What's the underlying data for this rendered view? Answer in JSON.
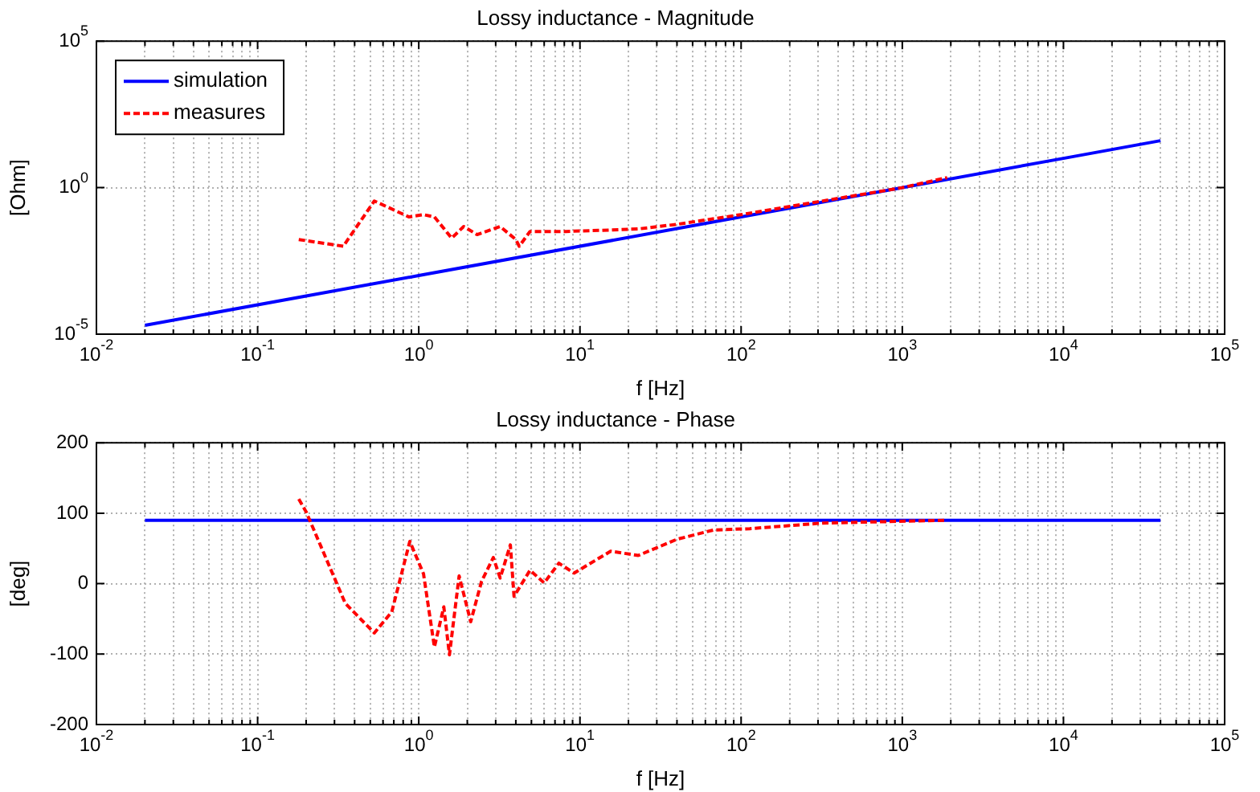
{
  "chart_data": [
    {
      "type": "line",
      "title": "Lossy inductance - Magnitude",
      "xlabel": "f [Hz]",
      "ylabel": "[Ohm]",
      "log": "xy",
      "grid": true,
      "legend": "top left",
      "xlim": [
        0.01,
        100000
      ],
      "ylim": [
        1e-05,
        100000
      ],
      "xticks": [
        {
          "value": 0.01,
          "label": "10$^{-2}$"
        },
        {
          "value": 0.02,
          "label": null
        },
        {
          "value": 0.03,
          "label": null
        },
        {
          "value": 0.04,
          "label": null
        },
        {
          "value": 0.05,
          "label": null
        },
        {
          "value": 0.06,
          "label": null
        },
        {
          "value": 0.07,
          "label": null
        },
        {
          "value": 0.08,
          "label": null
        },
        {
          "value": 0.09,
          "label": null
        },
        {
          "value": 0.1,
          "label": "10$^{-1}$"
        },
        {
          "value": 0.2,
          "label": null
        },
        {
          "value": 0.3,
          "label": null
        },
        {
          "value": 0.4,
          "label": null
        },
        {
          "value": 0.5,
          "label": null
        },
        {
          "value": 0.6,
          "label": null
        },
        {
          "value": 0.7,
          "label": null
        },
        {
          "value": 0.8,
          "label": null
        },
        {
          "value": 0.9,
          "label": null
        },
        {
          "value": 1,
          "label": "10$^{0}$"
        },
        {
          "value": 2,
          "label": null
        },
        {
          "value": 3,
          "label": null
        },
        {
          "value": 4,
          "label": null
        },
        {
          "value": 5,
          "label": null
        },
        {
          "value": 6,
          "label": null
        },
        {
          "value": 7,
          "label": null
        },
        {
          "value": 8,
          "label": null
        },
        {
          "value": 9,
          "label": null
        },
        {
          "value": 10,
          "label": "10$^{1}$"
        },
        {
          "value": 20,
          "label": null
        },
        {
          "value": 30,
          "label": null
        },
        {
          "value": 40,
          "label": null
        },
        {
          "value": 50,
          "label": null
        },
        {
          "value": 60,
          "label": null
        },
        {
          "value": 70,
          "label": null
        },
        {
          "value": 80,
          "label": null
        },
        {
          "value": 90,
          "label": null
        },
        {
          "value": 100,
          "label": "10$^{2}$"
        },
        {
          "value": 200,
          "label": null
        },
        {
          "value": 300,
          "label": null
        },
        {
          "value": 400,
          "label": null
        },
        {
          "value": 500,
          "label": null
        },
        {
          "value": 600,
          "label": null
        },
        {
          "value": 700,
          "label": null
        },
        {
          "value": 800,
          "label": null
        },
        {
          "value": 900,
          "label": null
        },
        {
          "value": 1000,
          "label": "10$^{3}$"
        },
        {
          "value": 2000,
          "label": null
        },
        {
          "value": 3000,
          "label": null
        },
        {
          "value": 4000,
          "label": null
        },
        {
          "value": 5000,
          "label": null
        },
        {
          "value": 6000,
          "label": null
        },
        {
          "value": 7000,
          "label": null
        },
        {
          "value": 8000,
          "label": null
        },
        {
          "value": 9000,
          "label": null
        },
        {
          "value": 10000,
          "label": "10$^{4}$"
        },
        {
          "value": 20000,
          "label": null
        },
        {
          "value": 30000,
          "label": null
        },
        {
          "value": 40000,
          "label": null
        },
        {
          "value": 50000,
          "label": null
        },
        {
          "value": 60000,
          "label": null
        },
        {
          "value": 70000,
          "label": null
        },
        {
          "value": 80000,
          "label": null
        },
        {
          "value": 90000,
          "label": null
        },
        {
          "value": 100000,
          "label": "10$^{5}$"
        }
      ],
      "yticks": [
        {
          "value": 1e-05,
          "label": "10$^{-5}$"
        },
        {
          "value": 1,
          "label": "10$^{0}$"
        },
        {
          "value": 100000,
          "label": "10$^{5}$"
        }
      ],
      "series": [
        {
          "name": "simulation",
          "color": "#0000ff",
          "line_style": "solid",
          "x": [
            0.02,
            1,
            100,
            10000,
            40000
          ],
          "values": [
            2e-05,
            0.001,
            0.1,
            10,
            40
          ]
        },
        {
          "name": "measures",
          "color": "#ff0000",
          "line_style": "dashed",
          "x": [
            0.18,
            0.34,
            0.53,
            0.87,
            1.07,
            1.25,
            1.6,
            1.9,
            2.3,
            3.2,
            4,
            4.2,
            4.9,
            8.2,
            13.8,
            23,
            40,
            100,
            1000,
            1900
          ],
          "values": [
            0.017,
            0.01,
            0.35,
            0.1,
            0.12,
            0.1,
            0.019,
            0.047,
            0.025,
            0.047,
            0.017,
            0.01,
            0.032,
            0.032,
            0.035,
            0.039,
            0.056,
            0.12,
            1,
            2.2
          ]
        }
      ]
    },
    {
      "type": "line",
      "title": "Lossy inductance - Phase",
      "xlabel": "f [Hz]",
      "ylabel": "[deg]",
      "log": "x",
      "grid": true,
      "xlim": [
        0.01,
        100000
      ],
      "ylim": [
        -200,
        200
      ],
      "xticks": [
        {
          "value": 0.01,
          "label": "10$^{-2}$"
        },
        {
          "value": 0.02,
          "label": null
        },
        {
          "value": 0.03,
          "label": null
        },
        {
          "value": 0.04,
          "label": null
        },
        {
          "value": 0.05,
          "label": null
        },
        {
          "value": 0.06,
          "label": null
        },
        {
          "value": 0.07,
          "label": null
        },
        {
          "value": 0.08,
          "label": null
        },
        {
          "value": 0.09,
          "label": null
        },
        {
          "value": 0.1,
          "label": "10$^{-1}$"
        },
        {
          "value": 0.2,
          "label": null
        },
        {
          "value": 0.3,
          "label": null
        },
        {
          "value": 0.4,
          "label": null
        },
        {
          "value": 0.5,
          "label": null
        },
        {
          "value": 0.6,
          "label": null
        },
        {
          "value": 0.7,
          "label": null
        },
        {
          "value": 0.8,
          "label": null
        },
        {
          "value": 0.9,
          "label": null
        },
        {
          "value": 1,
          "label": "10$^{0}$"
        },
        {
          "value": 2,
          "label": null
        },
        {
          "value": 3,
          "label": null
        },
        {
          "value": 4,
          "label": null
        },
        {
          "value": 5,
          "label": null
        },
        {
          "value": 6,
          "label": null
        },
        {
          "value": 7,
          "label": null
        },
        {
          "value": 8,
          "label": null
        },
        {
          "value": 9,
          "label": null
        },
        {
          "value": 10,
          "label": "10$^{1}$"
        },
        {
          "value": 20,
          "label": null
        },
        {
          "value": 30,
          "label": null
        },
        {
          "value": 40,
          "label": null
        },
        {
          "value": 50,
          "label": null
        },
        {
          "value": 60,
          "label": null
        },
        {
          "value": 70,
          "label": null
        },
        {
          "value": 80,
          "label": null
        },
        {
          "value": 90,
          "label": null
        },
        {
          "value": 100,
          "label": "10$^{2}$"
        },
        {
          "value": 200,
          "label": null
        },
        {
          "value": 300,
          "label": null
        },
        {
          "value": 400,
          "label": null
        },
        {
          "value": 500,
          "label": null
        },
        {
          "value": 600,
          "label": null
        },
        {
          "value": 700,
          "label": null
        },
        {
          "value": 800,
          "label": null
        },
        {
          "value": 900,
          "label": null
        },
        {
          "value": 1000,
          "label": "10$^{3}$"
        },
        {
          "value": 2000,
          "label": null
        },
        {
          "value": 3000,
          "label": null
        },
        {
          "value": 4000,
          "label": null
        },
        {
          "value": 5000,
          "label": null
        },
        {
          "value": 6000,
          "label": null
        },
        {
          "value": 7000,
          "label": null
        },
        {
          "value": 8000,
          "label": null
        },
        {
          "value": 9000,
          "label": null
        },
        {
          "value": 10000,
          "label": "10$^{4}$"
        },
        {
          "value": 20000,
          "label": null
        },
        {
          "value": 30000,
          "label": null
        },
        {
          "value": 40000,
          "label": null
        },
        {
          "value": 50000,
          "label": null
        },
        {
          "value": 60000,
          "label": null
        },
        {
          "value": 70000,
          "label": null
        },
        {
          "value": 80000,
          "label": null
        },
        {
          "value": 90000,
          "label": null
        },
        {
          "value": 100000,
          "label": "10$^{5}$"
        }
      ],
      "yticks": [
        -200,
        -100,
        0,
        100,
        200
      ],
      "series": [
        {
          "color": "#0000ff",
          "line_style": "solid",
          "x": [
            0.02,
            1,
            100,
            10000,
            40000
          ],
          "values": [
            90,
            90,
            90,
            90,
            90
          ]
        },
        {
          "color": "#ff0000",
          "line_style": "dashed",
          "x": [
            0.18,
            0.2,
            0.35,
            0.53,
            0.68,
            0.88,
            1.07,
            1.25,
            1.43,
            1.55,
            1.78,
            2.1,
            2.45,
            2.9,
            3.2,
            3.7,
            3.9,
            4.9,
            6,
            7.4,
            9.2,
            15.5,
            23,
            40,
            67,
            113,
            320,
            1900
          ],
          "values": [
            120,
            102,
            -28,
            -70,
            -40,
            60,
            14,
            -90,
            -33,
            -101,
            11,
            -54,
            3,
            37,
            8,
            55,
            -18,
            19,
            1,
            29,
            15,
            46,
            40,
            63,
            76,
            78,
            86,
            90
          ]
        }
      ]
    }
  ]
}
